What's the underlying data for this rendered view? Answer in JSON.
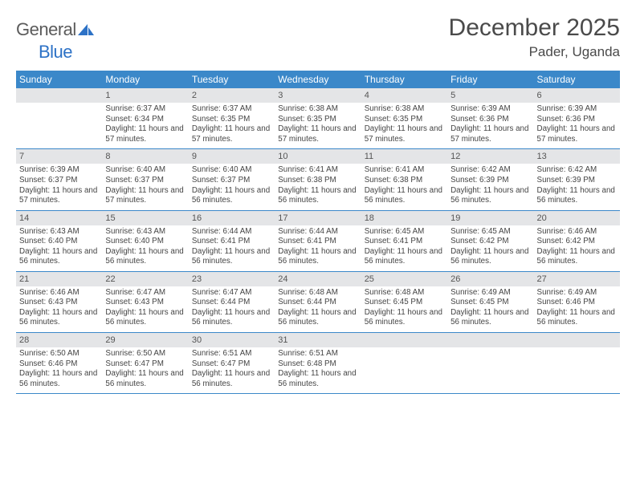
{
  "brand": {
    "part1": "General",
    "part2": "Blue"
  },
  "title": "December 2025",
  "location": "Pader, Uganda",
  "colors": {
    "header_bar": "#3b88c9",
    "header_text": "#ffffff",
    "daynum_strip": "#e4e5e7",
    "body_text": "#444444",
    "rule": "#3b88c9",
    "page_bg": "#ffffff",
    "logo_gray": "#5b5b5b",
    "logo_blue": "#2d72c6"
  },
  "typography": {
    "month_title_pt": 30,
    "location_pt": 17,
    "dow_pt": 12,
    "daynum_pt": 11,
    "body_pt": 9.8,
    "family": "Arial"
  },
  "dow": [
    "Sunday",
    "Monday",
    "Tuesday",
    "Wednesday",
    "Thursday",
    "Friday",
    "Saturday"
  ],
  "weeks": [
    [
      {
        "n": "",
        "sr": "",
        "ss": "",
        "dl": ""
      },
      {
        "n": "1",
        "sr": "Sunrise: 6:37 AM",
        "ss": "Sunset: 6:34 PM",
        "dl": "Daylight: 11 hours and 57 minutes."
      },
      {
        "n": "2",
        "sr": "Sunrise: 6:37 AM",
        "ss": "Sunset: 6:35 PM",
        "dl": "Daylight: 11 hours and 57 minutes."
      },
      {
        "n": "3",
        "sr": "Sunrise: 6:38 AM",
        "ss": "Sunset: 6:35 PM",
        "dl": "Daylight: 11 hours and 57 minutes."
      },
      {
        "n": "4",
        "sr": "Sunrise: 6:38 AM",
        "ss": "Sunset: 6:35 PM",
        "dl": "Daylight: 11 hours and 57 minutes."
      },
      {
        "n": "5",
        "sr": "Sunrise: 6:39 AM",
        "ss": "Sunset: 6:36 PM",
        "dl": "Daylight: 11 hours and 57 minutes."
      },
      {
        "n": "6",
        "sr": "Sunrise: 6:39 AM",
        "ss": "Sunset: 6:36 PM",
        "dl": "Daylight: 11 hours and 57 minutes."
      }
    ],
    [
      {
        "n": "7",
        "sr": "Sunrise: 6:39 AM",
        "ss": "Sunset: 6:37 PM",
        "dl": "Daylight: 11 hours and 57 minutes."
      },
      {
        "n": "8",
        "sr": "Sunrise: 6:40 AM",
        "ss": "Sunset: 6:37 PM",
        "dl": "Daylight: 11 hours and 57 minutes."
      },
      {
        "n": "9",
        "sr": "Sunrise: 6:40 AM",
        "ss": "Sunset: 6:37 PM",
        "dl": "Daylight: 11 hours and 56 minutes."
      },
      {
        "n": "10",
        "sr": "Sunrise: 6:41 AM",
        "ss": "Sunset: 6:38 PM",
        "dl": "Daylight: 11 hours and 56 minutes."
      },
      {
        "n": "11",
        "sr": "Sunrise: 6:41 AM",
        "ss": "Sunset: 6:38 PM",
        "dl": "Daylight: 11 hours and 56 minutes."
      },
      {
        "n": "12",
        "sr": "Sunrise: 6:42 AM",
        "ss": "Sunset: 6:39 PM",
        "dl": "Daylight: 11 hours and 56 minutes."
      },
      {
        "n": "13",
        "sr": "Sunrise: 6:42 AM",
        "ss": "Sunset: 6:39 PM",
        "dl": "Daylight: 11 hours and 56 minutes."
      }
    ],
    [
      {
        "n": "14",
        "sr": "Sunrise: 6:43 AM",
        "ss": "Sunset: 6:40 PM",
        "dl": "Daylight: 11 hours and 56 minutes."
      },
      {
        "n": "15",
        "sr": "Sunrise: 6:43 AM",
        "ss": "Sunset: 6:40 PM",
        "dl": "Daylight: 11 hours and 56 minutes."
      },
      {
        "n": "16",
        "sr": "Sunrise: 6:44 AM",
        "ss": "Sunset: 6:41 PM",
        "dl": "Daylight: 11 hours and 56 minutes."
      },
      {
        "n": "17",
        "sr": "Sunrise: 6:44 AM",
        "ss": "Sunset: 6:41 PM",
        "dl": "Daylight: 11 hours and 56 minutes."
      },
      {
        "n": "18",
        "sr": "Sunrise: 6:45 AM",
        "ss": "Sunset: 6:41 PM",
        "dl": "Daylight: 11 hours and 56 minutes."
      },
      {
        "n": "19",
        "sr": "Sunrise: 6:45 AM",
        "ss": "Sunset: 6:42 PM",
        "dl": "Daylight: 11 hours and 56 minutes."
      },
      {
        "n": "20",
        "sr": "Sunrise: 6:46 AM",
        "ss": "Sunset: 6:42 PM",
        "dl": "Daylight: 11 hours and 56 minutes."
      }
    ],
    [
      {
        "n": "21",
        "sr": "Sunrise: 6:46 AM",
        "ss": "Sunset: 6:43 PM",
        "dl": "Daylight: 11 hours and 56 minutes."
      },
      {
        "n": "22",
        "sr": "Sunrise: 6:47 AM",
        "ss": "Sunset: 6:43 PM",
        "dl": "Daylight: 11 hours and 56 minutes."
      },
      {
        "n": "23",
        "sr": "Sunrise: 6:47 AM",
        "ss": "Sunset: 6:44 PM",
        "dl": "Daylight: 11 hours and 56 minutes."
      },
      {
        "n": "24",
        "sr": "Sunrise: 6:48 AM",
        "ss": "Sunset: 6:44 PM",
        "dl": "Daylight: 11 hours and 56 minutes."
      },
      {
        "n": "25",
        "sr": "Sunrise: 6:48 AM",
        "ss": "Sunset: 6:45 PM",
        "dl": "Daylight: 11 hours and 56 minutes."
      },
      {
        "n": "26",
        "sr": "Sunrise: 6:49 AM",
        "ss": "Sunset: 6:45 PM",
        "dl": "Daylight: 11 hours and 56 minutes."
      },
      {
        "n": "27",
        "sr": "Sunrise: 6:49 AM",
        "ss": "Sunset: 6:46 PM",
        "dl": "Daylight: 11 hours and 56 minutes."
      }
    ],
    [
      {
        "n": "28",
        "sr": "Sunrise: 6:50 AM",
        "ss": "Sunset: 6:46 PM",
        "dl": "Daylight: 11 hours and 56 minutes."
      },
      {
        "n": "29",
        "sr": "Sunrise: 6:50 AM",
        "ss": "Sunset: 6:47 PM",
        "dl": "Daylight: 11 hours and 56 minutes."
      },
      {
        "n": "30",
        "sr": "Sunrise: 6:51 AM",
        "ss": "Sunset: 6:47 PM",
        "dl": "Daylight: 11 hours and 56 minutes."
      },
      {
        "n": "31",
        "sr": "Sunrise: 6:51 AM",
        "ss": "Sunset: 6:48 PM",
        "dl": "Daylight: 11 hours and 56 minutes."
      },
      {
        "n": "",
        "sr": "",
        "ss": "",
        "dl": ""
      },
      {
        "n": "",
        "sr": "",
        "ss": "",
        "dl": ""
      },
      {
        "n": "",
        "sr": "",
        "ss": "",
        "dl": ""
      }
    ]
  ]
}
